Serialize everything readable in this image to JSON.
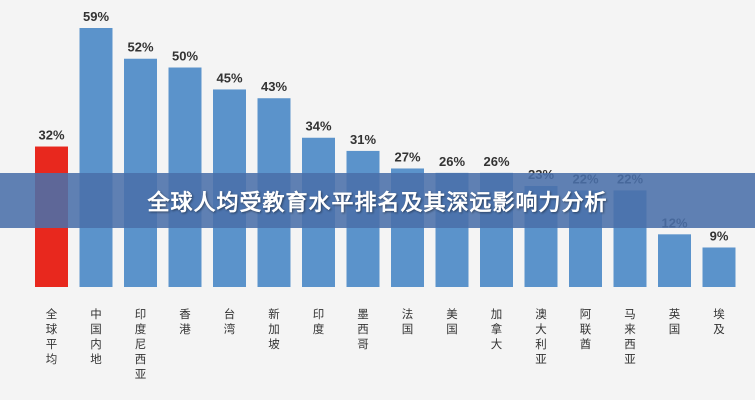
{
  "title": "全球人均受教育水平排名及其深远影响力分析",
  "colors": {
    "highlight": "#e8281e",
    "bar": "#5b93cb",
    "banner": "#4a70aa"
  },
  "chart_data": {
    "type": "bar",
    "title": "",
    "xlabel": "",
    "ylabel": "",
    "ylim": [
      0,
      60
    ],
    "grid": false,
    "highlight_index": 0,
    "categories": [
      "全球平均",
      "中国内地",
      "印度尼西亚",
      "香港",
      "台湾",
      "新加坡",
      "印度",
      "墨西哥",
      "法国",
      "美国",
      "加拿大",
      "澳大利亚",
      "阿联酋",
      "马来西亚",
      "英国",
      "埃及"
    ],
    "values": [
      32,
      59,
      52,
      50,
      45,
      43,
      34,
      31,
      27,
      26,
      26,
      23,
      22,
      22,
      12,
      9
    ],
    "value_labels": [
      "32%",
      "59%",
      "52%",
      "50%",
      "45%",
      "43%",
      "34%",
      "31%",
      "27%",
      "26%",
      "26%",
      "23%",
      "22%",
      "22%",
      "12%",
      "9%"
    ]
  }
}
